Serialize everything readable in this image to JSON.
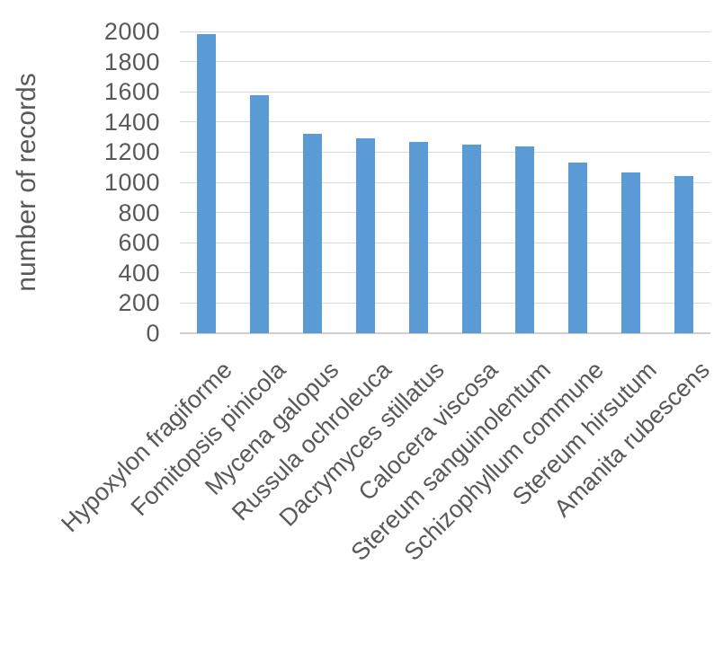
{
  "chart_data": {
    "type": "bar",
    "title": "",
    "xlabel": "",
    "ylabel": "number of records",
    "categories": [
      "Hypoxylon fragiforme",
      "Fomitopsis pinicola",
      "Mycena galopus",
      "Russula ochroleuca",
      "Dacrymyces stillatus",
      "Calocera viscosa",
      "Stereum sanguinolentum",
      "Schizophyllum commune",
      "Stereum hirsutum",
      "Amanita rubescens"
    ],
    "values": [
      1980,
      1580,
      1320,
      1290,
      1265,
      1250,
      1240,
      1130,
      1065,
      1040
    ],
    "ylim": [
      0,
      2000
    ],
    "yticks": [
      0,
      200,
      400,
      600,
      800,
      1000,
      1200,
      1400,
      1600,
      1800,
      2000
    ],
    "grid": true,
    "legend": false,
    "bar_color": "#5b9bd5",
    "gridline_color": "#d9d9d9",
    "axis_line_color": "#cfcfcf",
    "text_color": "#595959"
  }
}
